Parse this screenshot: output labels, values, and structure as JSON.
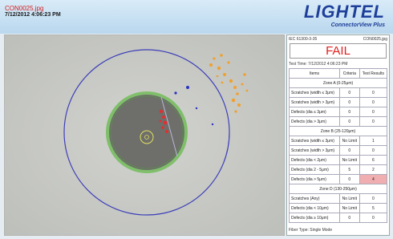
{
  "header": {
    "file_name": "CON0025.jpg",
    "timestamp": "7/12/2012 4:06:23 PM",
    "logo": "LIGHTEL",
    "product": "ConnectorView Plus"
  },
  "panel": {
    "standard": "IEC 61300-3-35",
    "file_name": "CON0025.jpg",
    "result": "FAIL",
    "test_time": "Test Time: 7/12/2012 4:06:23 PM",
    "table": {
      "columns": [
        "Items",
        "Criteria",
        "Test Results"
      ],
      "zones": [
        {
          "name": "Zone A (0-25μm)",
          "rows": [
            [
              "Scratches (width ≤ 3μm)",
              "0",
              "0"
            ],
            [
              "Scratches (width > 3μm)",
              "0",
              "0"
            ],
            [
              "Defects (dia ≤ 3μm)",
              "0",
              "0"
            ],
            [
              "Defects (dia > 3μm)",
              "0",
              "0"
            ]
          ]
        },
        {
          "name": "Zone B (25-120μm)",
          "rows": [
            [
              "Scratches (width ≤ 3μm)",
              "No Limit",
              "1"
            ],
            [
              "Scratches (width > 3μm)",
              "0",
              "0"
            ],
            [
              "Defects (dia < 2μm)",
              "No Limit",
              "6"
            ],
            [
              "Defects (dia 2 - 5μm)",
              "5",
              "2"
            ],
            [
              "Defects (dia > 5μm)",
              "0",
              "4"
            ]
          ]
        },
        {
          "name": "Zone D (130-250μm)",
          "rows": [
            [
              "Scratches (Any)",
              "No Limit",
              "0"
            ],
            [
              "Defects (dia < 10μm)",
              "No Limit",
              "5"
            ],
            [
              "Defects (dia ≥ 10μm)",
              "0",
              "0"
            ]
          ]
        }
      ]
    },
    "fiber_type": "Fiber Type: Single Mode"
  }
}
